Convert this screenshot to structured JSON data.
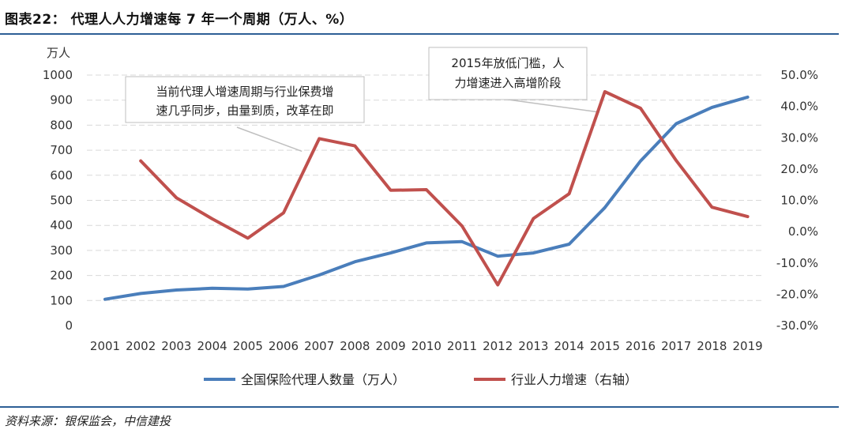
{
  "figure": {
    "title": "图表22： 代理人人力增速每 7 年一个周期（万人、%）",
    "source": "资料来源：银保监会，中信建投"
  },
  "chart_data": {
    "type": "line",
    "title": "代理人人力增速每 7 年一个周期（万人、%）",
    "categories": [
      "2001",
      "2002",
      "2003",
      "2004",
      "2005",
      "2006",
      "2007",
      "2008",
      "2009",
      "2010",
      "2011",
      "2012",
      "2013",
      "2014",
      "2015",
      "2016",
      "2017",
      "2018",
      "2019"
    ],
    "left_axis": {
      "unit_label": "万人",
      "ylim": [
        0,
        1000
      ],
      "ticks": [
        0,
        100,
        200,
        300,
        400,
        500,
        600,
        700,
        800,
        900,
        1000
      ],
      "tick_labels": [
        "0",
        "100",
        "200",
        "300",
        "400",
        "500",
        "600",
        "700",
        "800",
        "900",
        "1000"
      ]
    },
    "right_axis": {
      "ylim": [
        -30,
        50
      ],
      "ticks": [
        -30,
        -20,
        -10,
        0,
        10,
        20,
        30,
        40,
        50
      ],
      "tick_labels": [
        "-30.0%",
        "-20.0%",
        "-10.0%",
        "0.0%",
        "10.0%",
        "20.0%",
        "30.0%",
        "40.0%",
        "50.0%"
      ]
    },
    "series": [
      {
        "name": "全国保险代理人数量（万人）",
        "axis": "left",
        "color": "#4a7ebb",
        "values": [
          105,
          128,
          142,
          149,
          146,
          156,
          202,
          255,
          290,
          330,
          335,
          277,
          290,
          325,
          471,
          657,
          806,
          871,
          912
        ]
      },
      {
        "name": "行业人力增速（右轴）",
        "axis": "right",
        "color": "#c0504d",
        "values": [
          null,
          22.6,
          10.8,
          4.1,
          -2.1,
          6.0,
          29.7,
          27.4,
          13.2,
          13.4,
          1.8,
          -17.0,
          4.2,
          12.1,
          44.7,
          39.4,
          22.7,
          7.8,
          4.8
        ]
      }
    ],
    "annotations": [
      {
        "text_line1": "当前代理人增速周期与行业保费增",
        "text_line2": "速几乎同步，由量到质，改革在即",
        "points_to": "2007"
      },
      {
        "text_line1": "2015年放低门槛，人",
        "text_line2": "力增速进入高增阶段",
        "points_to": "2015"
      }
    ],
    "grid": true,
    "legend_position": "bottom-center"
  }
}
